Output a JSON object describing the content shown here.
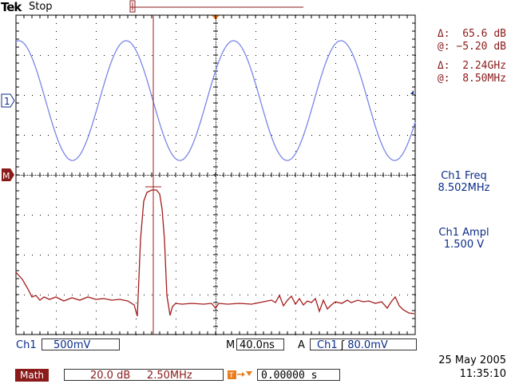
{
  "header": {
    "brand": "Tek",
    "run_state": "Stop"
  },
  "cursor_readout": {
    "delta_amp_label": "Δ:",
    "delta_amp": "65.6 dB",
    "at_amp_label": "@:",
    "at_amp": "−5.20 dB",
    "delta_freq_label": "Δ:",
    "delta_freq": "2.24GHz",
    "at_freq_label": "@:",
    "at_freq": "8.50MHz"
  },
  "measurements": [
    {
      "name": "Ch1 Freq",
      "value": "8.502MHz"
    },
    {
      "name": "Ch1 Ampl",
      "value": "1.500 V"
    }
  ],
  "markers": {
    "ch1": "1",
    "math": "M"
  },
  "status_bar": {
    "ch1_label": "Ch1",
    "ch1_scale": "500mV",
    "timebase_label": "M",
    "timebase": "40.0ns",
    "trigger_label": "A",
    "trigger_source": "Ch1",
    "trigger_slope": "ʃ",
    "trigger_level": "80.0mV",
    "math_label": "Math",
    "math_scale": "20.0 dB",
    "math_span": "2.50MHz",
    "pos_value": "0.00000 s"
  },
  "datetime": {
    "date": "25 May 2005",
    "time": "11:35:10"
  },
  "colors": {
    "ch1": "#7a86e6",
    "math": "#a51c1c",
    "text_blue": "#0b2d8a",
    "text_red": "#8b1a1a"
  }
}
